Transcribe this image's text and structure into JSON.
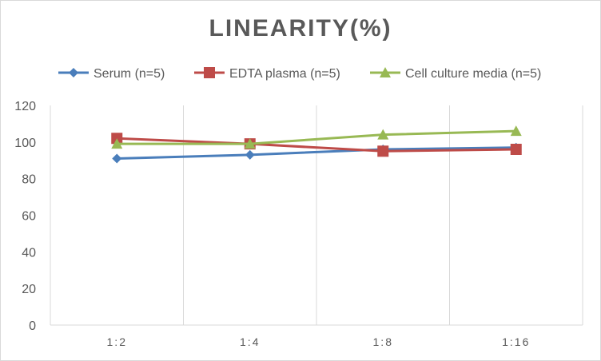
{
  "chart_data": {
    "type": "line",
    "title": "LINEARITY(%)",
    "xlabel": "",
    "ylabel": "",
    "categories": [
      "1:2",
      "1:4",
      "1:8",
      "1:16"
    ],
    "ylim": [
      0,
      120
    ],
    "yticks": [
      0,
      20,
      40,
      60,
      80,
      100,
      120
    ],
    "grid": "vertical",
    "legend": "top",
    "series": [
      {
        "name": "Serum (n=5)",
        "values": [
          91,
          93,
          96,
          97
        ],
        "color": "#4a7ebb",
        "marker": "diamond"
      },
      {
        "name": "EDTA plasma (n=5)",
        "values": [
          102,
          99,
          95,
          96
        ],
        "color": "#be4b48",
        "marker": "square"
      },
      {
        "name": "Cell culture media (n=5)",
        "values": [
          99,
          99,
          104,
          106
        ],
        "color": "#98b954",
        "marker": "triangle"
      }
    ]
  }
}
